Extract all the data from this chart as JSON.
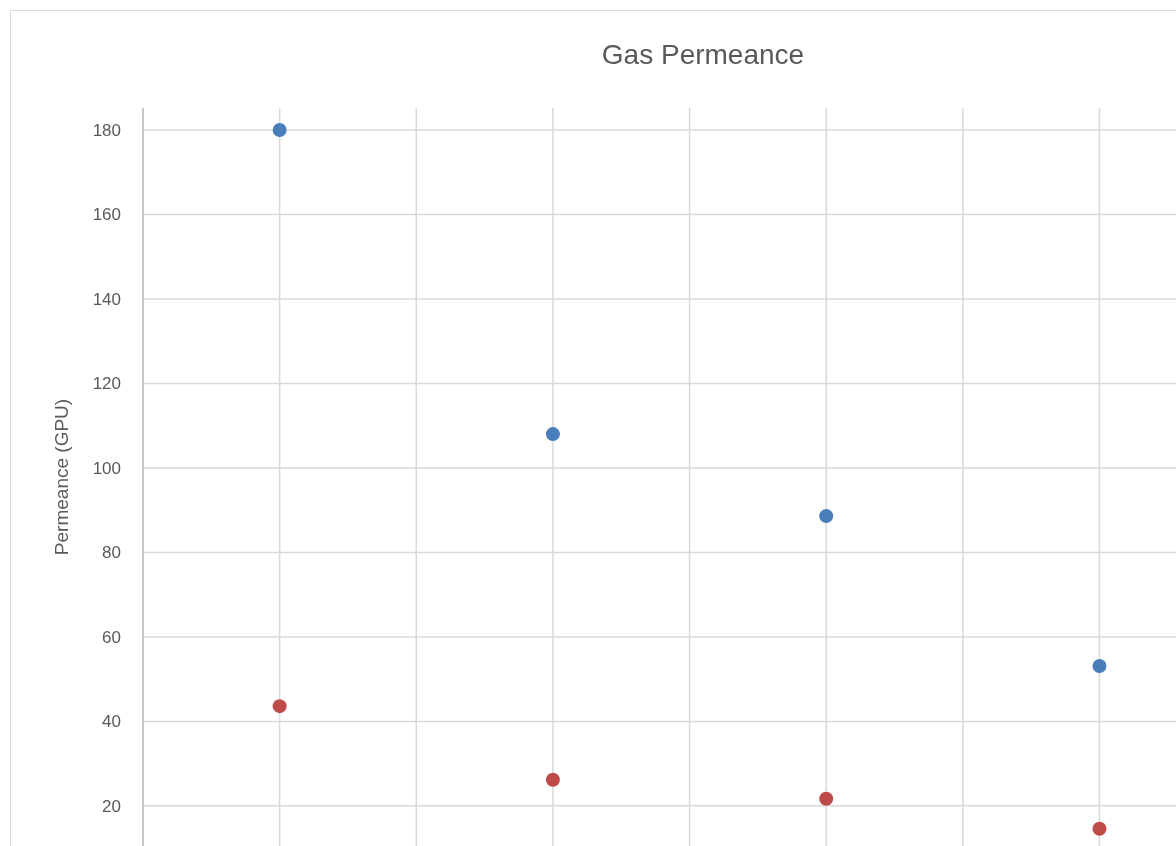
{
  "chart_data": {
    "type": "scatter",
    "title": "Gas Permeance",
    "ylabel": "Permeance (GPU)",
    "categories": [
      null,
      null,
      null,
      null
    ],
    "series": [
      {
        "color": "#4a7ebb",
        "values": [
          180,
          108,
          88.6,
          53.1
        ]
      },
      {
        "color": "#be4b48",
        "values": [
          43.6,
          26.2,
          21.7,
          14.6
        ]
      }
    ],
    "ylim": [
      10.5,
      185.2
    ],
    "yticks": [
      20,
      40,
      60,
      80,
      100,
      120,
      140,
      160,
      180
    ],
    "grid": true,
    "tick_labels": "y",
    "marker": "circle"
  }
}
